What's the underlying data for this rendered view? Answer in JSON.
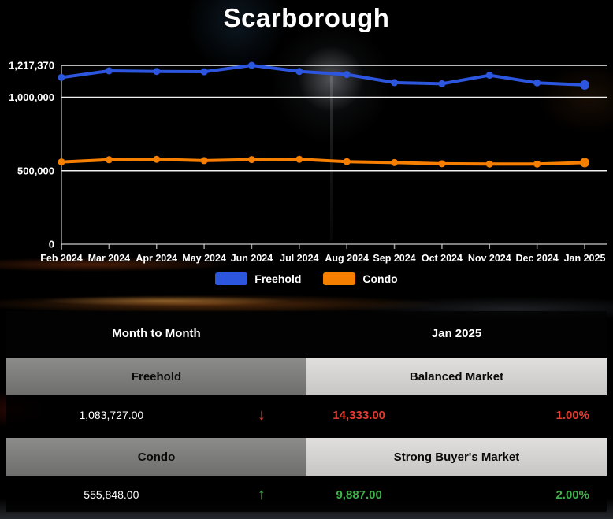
{
  "page": {
    "title": "Scarborough"
  },
  "chart_data": {
    "type": "line",
    "title": "Scarborough",
    "x": [
      "Feb 2024",
      "Mar 2024",
      "Apr 2024",
      "May 2024",
      "Jun 2024",
      "Jul 2024",
      "Aug 2024",
      "Sep 2024",
      "Oct 2024",
      "Nov 2024",
      "Dec 2024",
      "Jan 2025"
    ],
    "series": [
      {
        "name": "Freehold",
        "color": "#2d56df",
        "values": [
          1135000,
          1180000,
          1176000,
          1174000,
          1217370,
          1176000,
          1155000,
          1100000,
          1092000,
          1150000,
          1098060,
          1083727
        ]
      },
      {
        "name": "Condo",
        "color": "#f77f00",
        "values": [
          560000,
          575000,
          578000,
          569000,
          576000,
          578000,
          562000,
          556000,
          548000,
          546000,
          545961,
          555848
        ]
      }
    ],
    "ylim": [
      0,
      1217370
    ],
    "y_ticks": [
      {
        "value": 1217370,
        "label": "1,217,370"
      },
      {
        "value": 1000000,
        "label": "1,000,000"
      },
      {
        "value": 500000,
        "label": "500,000"
      },
      {
        "value": 0,
        "label": "0"
      }
    ],
    "grid": true,
    "legend_position": "bottom",
    "axis_color": "#c9c9c9",
    "gridline_color": "#ffffff",
    "tick_label_color": "#ffffff"
  },
  "table": {
    "header": {
      "left": "Month to Month",
      "right": "Jan 2025"
    },
    "rows": [
      {
        "category": "Freehold",
        "market_status": "Balanced Market",
        "value": "1,083,727.00",
        "arrow": "↓",
        "direction": "down",
        "change": "14,333.00",
        "percent": "1.00%",
        "color": "#e23b30"
      },
      {
        "category": "Condo",
        "market_status": "Strong Buyer's Market",
        "value": "555,848.00",
        "arrow": "↑",
        "direction": "up",
        "change": "9,887.00",
        "percent": "2.00%",
        "color": "#3fb14a"
      }
    ]
  }
}
